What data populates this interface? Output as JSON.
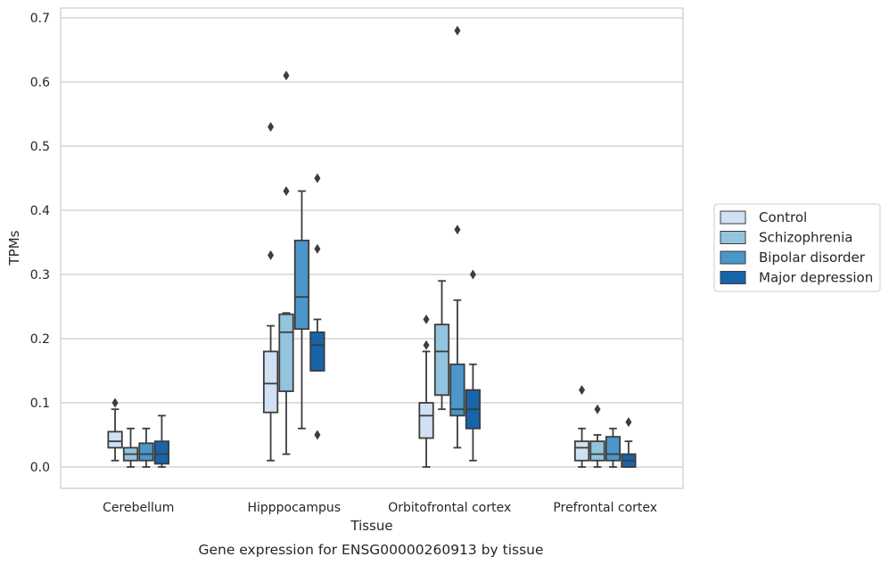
{
  "caption": "Gene expression for ENSG00000260913 by tissue",
  "chart_data": {
    "type": "box",
    "xlabel": "Tissue",
    "ylabel": "TPMs",
    "ylim": [
      -0.033,
      0.715
    ],
    "yticks": [
      0.0,
      0.1,
      0.2,
      0.3,
      0.4,
      0.5,
      0.6,
      0.7
    ],
    "ytick_labels": [
      "0.0",
      "0.1",
      "0.2",
      "0.3",
      "0.4",
      "0.5",
      "0.6",
      "0.7"
    ],
    "grid": "horizontal",
    "legend_position": "right",
    "categories": [
      "Cerebellum",
      "Hipppocampus",
      "Orbitofrontal cortex",
      "Prefrontal cortex"
    ],
    "series": [
      {
        "name": "Control",
        "color": "#cfe1f2",
        "boxes": [
          {
            "whisker_low": 0.01,
            "q1": 0.03,
            "median": 0.04,
            "q3": 0.055,
            "whisker_high": 0.09,
            "outliers": [
              0.1
            ]
          },
          {
            "whisker_low": 0.01,
            "q1": 0.085,
            "median": 0.13,
            "q3": 0.18,
            "whisker_high": 0.22,
            "outliers": [
              0.33,
              0.53
            ]
          },
          {
            "whisker_low": 0.0,
            "q1": 0.045,
            "median": 0.08,
            "q3": 0.1,
            "whisker_high": 0.18,
            "outliers": [
              0.19,
              0.23
            ]
          },
          {
            "whisker_low": 0.0,
            "q1": 0.01,
            "median": 0.03,
            "q3": 0.04,
            "whisker_high": 0.06,
            "outliers": [
              0.12
            ]
          }
        ]
      },
      {
        "name": "Schizophrenia",
        "color": "#93c4de",
        "boxes": [
          {
            "whisker_low": 0.0,
            "q1": 0.01,
            "median": 0.02,
            "q3": 0.03,
            "whisker_high": 0.06,
            "outliers": []
          },
          {
            "whisker_low": 0.02,
            "q1": 0.118,
            "median": 0.21,
            "q3": 0.238,
            "whisker_high": 0.24,
            "outliers": [
              0.43,
              0.61
            ]
          },
          {
            "whisker_low": 0.09,
            "q1": 0.112,
            "median": 0.18,
            "q3": 0.222,
            "whisker_high": 0.29,
            "outliers": []
          },
          {
            "whisker_low": 0.0,
            "q1": 0.01,
            "median": 0.02,
            "q3": 0.04,
            "whisker_high": 0.05,
            "outliers": [
              0.09
            ]
          }
        ]
      },
      {
        "name": "Bipolar disorder",
        "color": "#4b97c9",
        "boxes": [
          {
            "whisker_low": 0.0,
            "q1": 0.01,
            "median": 0.02,
            "q3": 0.037,
            "whisker_high": 0.06,
            "outliers": []
          },
          {
            "whisker_low": 0.06,
            "q1": 0.215,
            "median": 0.265,
            "q3": 0.353,
            "whisker_high": 0.43,
            "outliers": []
          },
          {
            "whisker_low": 0.03,
            "q1": 0.08,
            "median": 0.09,
            "q3": 0.16,
            "whisker_high": 0.26,
            "outliers": [
              0.37,
              0.68
            ]
          },
          {
            "whisker_low": 0.0,
            "q1": 0.01,
            "median": 0.02,
            "q3": 0.047,
            "whisker_high": 0.06,
            "outliers": []
          }
        ]
      },
      {
        "name": "Major depression",
        "color": "#1764ab",
        "boxes": [
          {
            "whisker_low": 0.0,
            "q1": 0.005,
            "median": 0.02,
            "q3": 0.04,
            "whisker_high": 0.08,
            "outliers": []
          },
          {
            "whisker_low": 0.15,
            "q1": 0.15,
            "median": 0.19,
            "q3": 0.21,
            "whisker_high": 0.23,
            "outliers": [
              0.05,
              0.34,
              0.45
            ]
          },
          {
            "whisker_low": 0.01,
            "q1": 0.06,
            "median": 0.09,
            "q3": 0.12,
            "whisker_high": 0.16,
            "outliers": [
              0.3
            ]
          },
          {
            "whisker_low": 0.0,
            "q1": 0.0,
            "median": 0.01,
            "q3": 0.02,
            "whisker_high": 0.04,
            "outliers": [
              0.07
            ]
          }
        ]
      }
    ]
  }
}
